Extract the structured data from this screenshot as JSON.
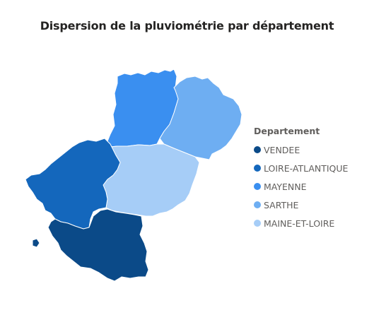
{
  "title": "Dispersion de la pluviométrie par département",
  "legend": {
    "title": "Departement",
    "items": [
      {
        "label": "VENDEE",
        "color": "#0b4a88"
      },
      {
        "label": "LOIRE-ATLANTIQUE",
        "color": "#1467bc"
      },
      {
        "label": "MAYENNE",
        "color": "#3a8ff0"
      },
      {
        "label": "SARTHE",
        "color": "#6eaef2"
      },
      {
        "label": "MAINE-ET-LOIRE",
        "color": "#a6cdf7"
      }
    ]
  },
  "regions": [
    {
      "name": "MAYENNE",
      "color": "#3a8ff0"
    },
    {
      "name": "SARTHE",
      "color": "#6eaef2"
    },
    {
      "name": "MAINE-ET-LOIRE",
      "color": "#a6cdf7"
    },
    {
      "name": "LOIRE-ATLANTIQUE",
      "color": "#1467bc"
    },
    {
      "name": "VENDEE",
      "color": "#0b4a88"
    }
  ]
}
